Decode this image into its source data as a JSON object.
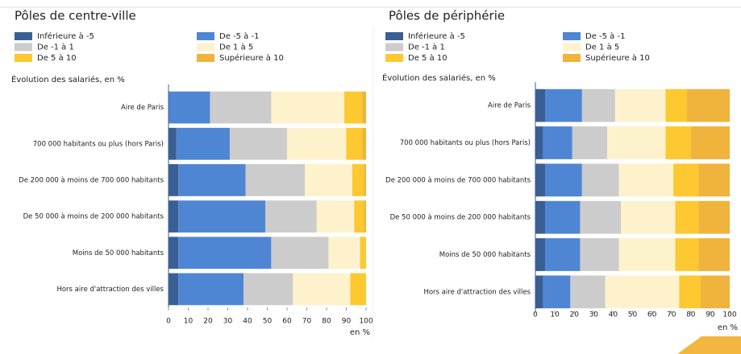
{
  "chart_data": [
    {
      "type": "bar",
      "orientation": "horizontal",
      "stacked": true,
      "title": "Pôles de centre-ville",
      "subtitle": "Évolution des salariés, en %",
      "xlabel": "en %",
      "categories": [
        "Aire de Paris",
        "700 000 habitants ou plus (hors Paris)",
        "De 200 000 à moins de 700 000 habitants",
        "De 50 000 à moins de 200 000 habitants",
        "Moins de 50 000 habitants",
        "Hors aire d'attraction des villes"
      ],
      "series": [
        {
          "name": "Inférieure à -5",
          "color": "#3a5f94",
          "values": [
            0,
            4,
            5,
            5,
            5,
            5
          ]
        },
        {
          "name": "De -5 à -1",
          "color": "#4f86d4",
          "values": [
            21,
            27,
            34,
            44,
            47,
            33
          ]
        },
        {
          "name": "De -1 à 1",
          "color": "#cccccc",
          "values": [
            31,
            29,
            30,
            26,
            29,
            25
          ]
        },
        {
          "name": "De 1 à 5",
          "color": "#fdf2cc",
          "values": [
            37,
            30,
            24,
            19,
            16,
            29
          ]
        },
        {
          "name": "De 5 à 10",
          "color": "#fdc830",
          "values": [
            9,
            8,
            6,
            5,
            3,
            8
          ]
        },
        {
          "name": "Supérieure à 10",
          "color": "#f0b33c",
          "values": [
            2,
            2,
            1,
            1,
            0,
            0
          ]
        }
      ],
      "xlim": [
        0,
        100
      ],
      "xticks": [
        0,
        10,
        20,
        30,
        40,
        50,
        60,
        70,
        80,
        90,
        100
      ]
    },
    {
      "type": "bar",
      "orientation": "horizontal",
      "stacked": true,
      "title": "Pôles de périphérie",
      "subtitle": "Évolution des salariés, en %",
      "xlabel": "en %",
      "categories": [
        "Aire de Paris",
        "700 000 habitants ou plus (hors Paris)",
        "De 200 000 à moins de 700 000 habitants",
        "De 50 000 à moins de 200 000 habitants",
        "Moins de 50 000 habitants",
        "Hors aire d'attraction des villes"
      ],
      "series": [
        {
          "name": "Inférieure à -5",
          "color": "#3a5f94",
          "values": [
            5,
            4,
            5,
            5,
            5,
            4
          ]
        },
        {
          "name": "De -5 à -1",
          "color": "#4f86d4",
          "values": [
            19,
            15,
            19,
            18,
            18,
            14
          ]
        },
        {
          "name": "De -1 à 1",
          "color": "#cccccc",
          "values": [
            17,
            18,
            19,
            21,
            20,
            18
          ]
        },
        {
          "name": "De 1 à 5",
          "color": "#fdf2cc",
          "values": [
            26,
            30,
            28,
            28,
            29,
            38
          ]
        },
        {
          "name": "De 5 à 10",
          "color": "#fdc830",
          "values": [
            11,
            13,
            13,
            12,
            12,
            11
          ]
        },
        {
          "name": "Supérieure à 10",
          "color": "#f0b33c",
          "values": [
            22,
            20,
            16,
            16,
            16,
            15
          ]
        }
      ],
      "xlim": [
        0,
        100
      ],
      "xticks": [
        0,
        10,
        20,
        30,
        40,
        50,
        60,
        70,
        80,
        90,
        100
      ]
    }
  ]
}
